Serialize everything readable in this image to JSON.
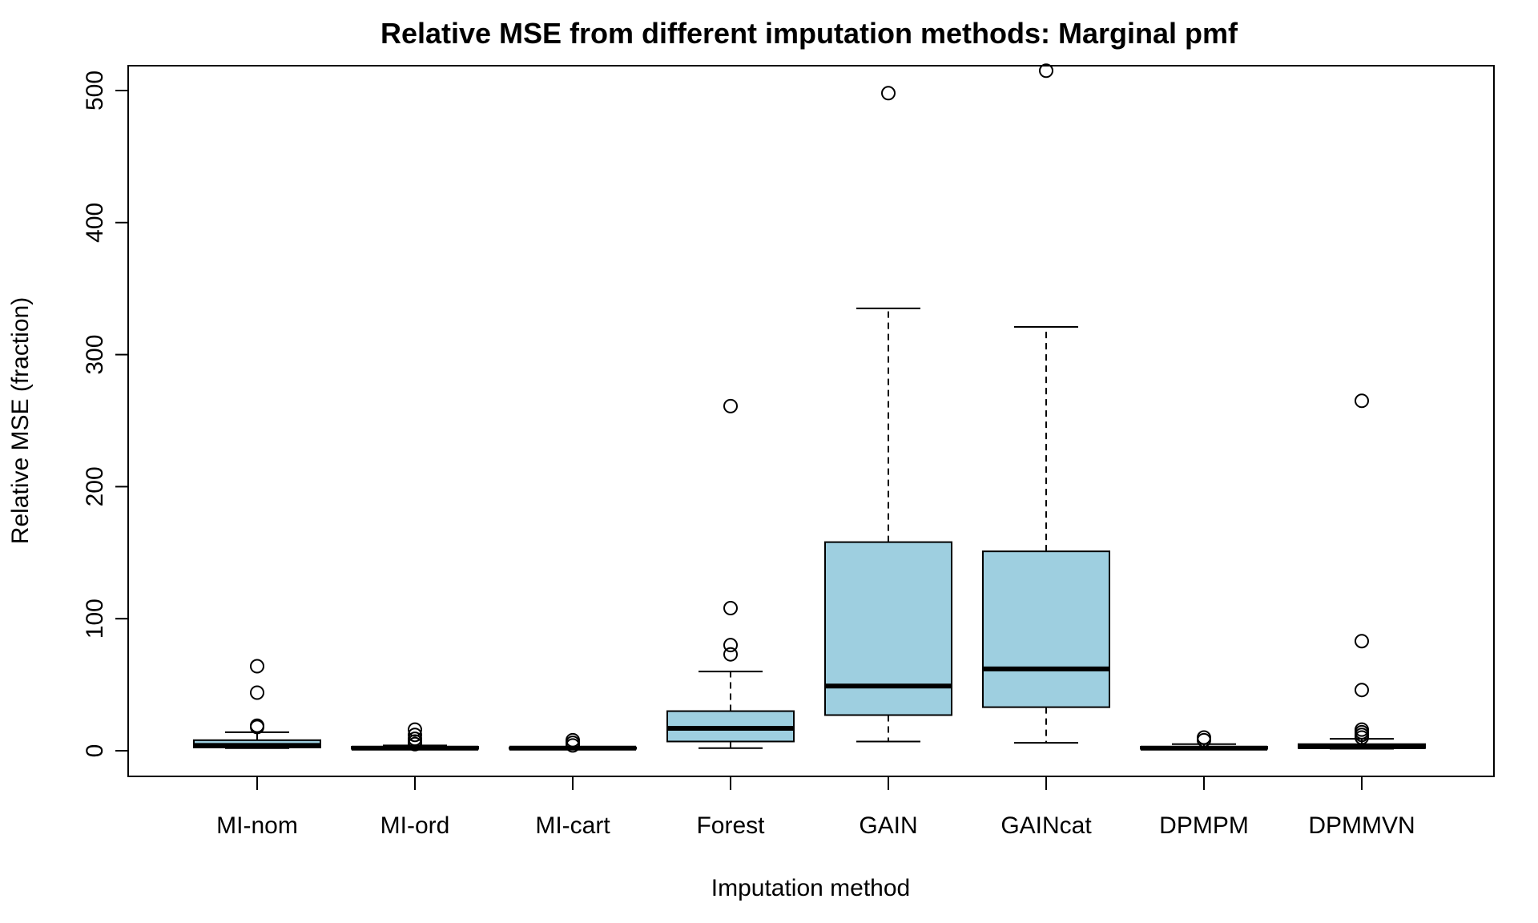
{
  "chart_data": {
    "type": "boxplot",
    "title": "Relative MSE from different imputation methods: Marginal pmf",
    "xlabel": "Imputation method",
    "ylabel": "Relative MSE (fraction)",
    "ylim": [
      -20,
      520
    ],
    "yticks": [
      0,
      100,
      200,
      300,
      400,
      500
    ],
    "categories": [
      "MI-nom",
      "MI-ord",
      "MI-cart",
      "Forest",
      "GAIN",
      "GAINcat",
      "DPMPM",
      "DPMMVN"
    ],
    "box_color": "#9ecfe0",
    "grid": false,
    "boxes": [
      {
        "name": "MI-nom",
        "min": 2,
        "q1": 2.5,
        "median": 4,
        "q3": 8,
        "max": 14,
        "outliers": [
          64,
          44,
          19,
          18
        ]
      },
      {
        "name": "MI-ord",
        "min": 1,
        "q1": 1.5,
        "median": 2,
        "q3": 3,
        "max": 4,
        "outliers": [
          16,
          12,
          9,
          7,
          5
        ]
      },
      {
        "name": "MI-cart",
        "min": 1,
        "q1": 1.5,
        "median": 2,
        "q3": 2.5,
        "max": 3,
        "outliers": [
          8,
          6,
          4
        ]
      },
      {
        "name": "Forest",
        "min": 2,
        "q1": 7,
        "median": 17,
        "q3": 30,
        "max": 60,
        "outliers": [
          261,
          108,
          80,
          73
        ]
      },
      {
        "name": "GAIN",
        "min": 7,
        "q1": 27,
        "median": 49,
        "q3": 158,
        "max": 335,
        "outliers": [
          498
        ]
      },
      {
        "name": "GAINcat",
        "min": 6,
        "q1": 33,
        "median": 62,
        "q3": 151,
        "max": 321,
        "outliers": [
          515
        ]
      },
      {
        "name": "DPMPM",
        "min": 1,
        "q1": 1.5,
        "median": 2,
        "q3": 3,
        "max": 5,
        "outliers": [
          10,
          8
        ]
      },
      {
        "name": "DPMMVN",
        "min": 1.5,
        "q1": 2,
        "median": 3,
        "q3": 5,
        "max": 9,
        "outliers": [
          265,
          83,
          46,
          16,
          14,
          12,
          10
        ]
      }
    ]
  }
}
